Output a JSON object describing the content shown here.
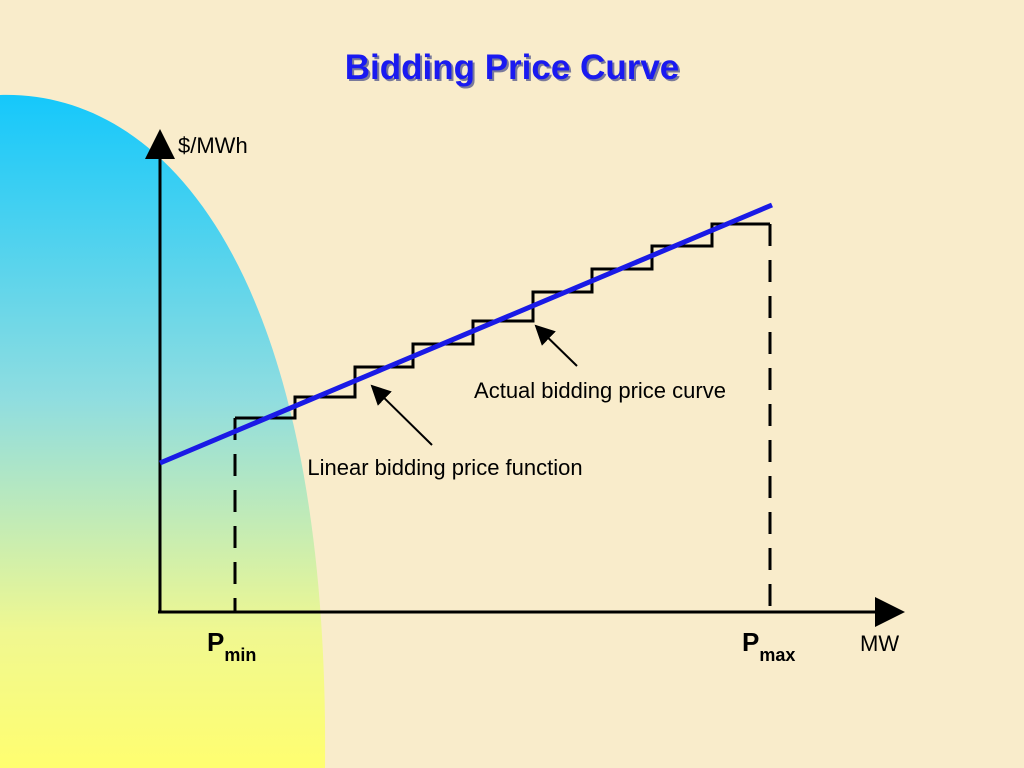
{
  "title": "Bidding Price Curve",
  "axes": {
    "y_label": "$/MWh",
    "x_label": "MW"
  },
  "markers": [
    {
      "main": "P",
      "sub": "min"
    },
    {
      "main": "P",
      "sub": "max"
    }
  ],
  "annotations": [
    "Actual bidding price curve",
    "Linear bidding price function"
  ]
}
